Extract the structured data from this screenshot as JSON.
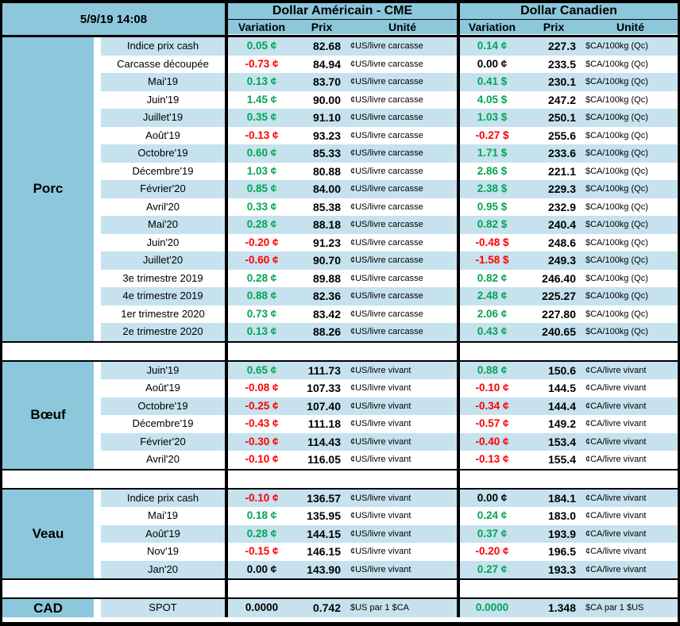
{
  "titlebar": {
    "timestamp": "5/9/19 14:08"
  },
  "header": {
    "us": {
      "title": "Dollar Américain - CME",
      "cols": [
        "Variation",
        "Prix",
        "Unité"
      ]
    },
    "ca": {
      "title": "Dollar Canadien",
      "cols": [
        "Variation",
        "Prix",
        "Unité"
      ]
    }
  },
  "colors": {
    "green": "#00A651",
    "red": "#FF0000",
    "black": "#000000",
    "header_blue": "#8CC7DB",
    "stripe_blue": "#C5E2EE"
  },
  "sections": [
    {
      "name": "Porc",
      "spot": false,
      "rows": [
        {
          "label": "Indice prix cash",
          "us_var": "0.05 ¢",
          "us_var_c": "g",
          "us_prix": "82.68",
          "us_unit": "¢US/livre carcasse",
          "ca_var": "0.14 ¢",
          "ca_var_c": "g",
          "ca_prix": "227.3",
          "ca_unit": "$CA/100kg (Qc)"
        },
        {
          "label": "Carcasse découpée",
          "us_var": "-0.73 ¢",
          "us_var_c": "r",
          "us_prix": "84.94",
          "us_unit": "¢US/livre carcasse",
          "ca_var": "0.00 ¢",
          "ca_var_c": "k",
          "ca_prix": "233.5",
          "ca_unit": "$CA/100kg (Qc)"
        },
        {
          "label": "Mai'19",
          "us_var": "0.13 ¢",
          "us_var_c": "g",
          "us_prix": "83.70",
          "us_unit": "¢US/livre carcasse",
          "ca_var": "0.41 $",
          "ca_var_c": "g",
          "ca_prix": "230.1",
          "ca_unit": "$CA/100kg (Qc)"
        },
        {
          "label": "Juin'19",
          "us_var": "1.45 ¢",
          "us_var_c": "g",
          "us_prix": "90.00",
          "us_unit": "¢US/livre carcasse",
          "ca_var": "4.05 $",
          "ca_var_c": "g",
          "ca_prix": "247.2",
          "ca_unit": "$CA/100kg (Qc)"
        },
        {
          "label": "Juillet'19",
          "us_var": "0.35 ¢",
          "us_var_c": "g",
          "us_prix": "91.10",
          "us_unit": "¢US/livre carcasse",
          "ca_var": "1.03 $",
          "ca_var_c": "g",
          "ca_prix": "250.1",
          "ca_unit": "$CA/100kg (Qc)"
        },
        {
          "label": "Août'19",
          "us_var": "-0.13 ¢",
          "us_var_c": "r",
          "us_prix": "93.23",
          "us_unit": "¢US/livre carcasse",
          "ca_var": "-0.27 $",
          "ca_var_c": "r",
          "ca_prix": "255.6",
          "ca_unit": "$CA/100kg (Qc)"
        },
        {
          "label": "Octobre'19",
          "us_var": "0.60 ¢",
          "us_var_c": "g",
          "us_prix": "85.33",
          "us_unit": "¢US/livre carcasse",
          "ca_var": "1.71 $",
          "ca_var_c": "g",
          "ca_prix": "233.6",
          "ca_unit": "$CA/100kg (Qc)"
        },
        {
          "label": "Décembre'19",
          "us_var": "1.03 ¢",
          "us_var_c": "g",
          "us_prix": "80.88",
          "us_unit": "¢US/livre carcasse",
          "ca_var": "2.86 $",
          "ca_var_c": "g",
          "ca_prix": "221.1",
          "ca_unit": "$CA/100kg (Qc)"
        },
        {
          "label": "Février'20",
          "us_var": "0.85 ¢",
          "us_var_c": "g",
          "us_prix": "84.00",
          "us_unit": "¢US/livre carcasse",
          "ca_var": "2.38 $",
          "ca_var_c": "g",
          "ca_prix": "229.3",
          "ca_unit": "$CA/100kg (Qc)"
        },
        {
          "label": "Avril'20",
          "us_var": "0.33 ¢",
          "us_var_c": "g",
          "us_prix": "85.38",
          "us_unit": "¢US/livre carcasse",
          "ca_var": "0.95 $",
          "ca_var_c": "g",
          "ca_prix": "232.9",
          "ca_unit": "$CA/100kg (Qc)"
        },
        {
          "label": "Mai'20",
          "us_var": "0.28 ¢",
          "us_var_c": "g",
          "us_prix": "88.18",
          "us_unit": "¢US/livre carcasse",
          "ca_var": "0.82 $",
          "ca_var_c": "g",
          "ca_prix": "240.4",
          "ca_unit": "$CA/100kg (Qc)"
        },
        {
          "label": "Juin'20",
          "us_var": "-0.20 ¢",
          "us_var_c": "r",
          "us_prix": "91.23",
          "us_unit": "¢US/livre carcasse",
          "ca_var": "-0.48 $",
          "ca_var_c": "r",
          "ca_prix": "248.6",
          "ca_unit": "$CA/100kg (Qc)"
        },
        {
          "label": "Juillet'20",
          "us_var": "-0.60 ¢",
          "us_var_c": "r",
          "us_prix": "90.70",
          "us_unit": "¢US/livre carcasse",
          "ca_var": "-1.58 $",
          "ca_var_c": "r",
          "ca_prix": "249.3",
          "ca_unit": "$CA/100kg (Qc)"
        },
        {
          "label": "3e trimestre 2019",
          "us_var": "0.28 ¢",
          "us_var_c": "g",
          "us_prix": "89.88",
          "us_unit": "¢US/livre carcasse",
          "ca_var": "0.82 ¢",
          "ca_var_c": "g",
          "ca_prix": "246.40",
          "ca_unit": "$CA/100kg (Qc)"
        },
        {
          "label": "4e trimestre 2019",
          "us_var": "0.88 ¢",
          "us_var_c": "g",
          "us_prix": "82.36",
          "us_unit": "¢US/livre carcasse",
          "ca_var": "2.48 ¢",
          "ca_var_c": "g",
          "ca_prix": "225.27",
          "ca_unit": "$CA/100kg (Qc)"
        },
        {
          "label": "1er trimestre 2020",
          "us_var": "0.73 ¢",
          "us_var_c": "g",
          "us_prix": "83.42",
          "us_unit": "¢US/livre carcasse",
          "ca_var": "2.06 ¢",
          "ca_var_c": "g",
          "ca_prix": "227.80",
          "ca_unit": "$CA/100kg (Qc)"
        },
        {
          "label": "2e trimestre 2020",
          "us_var": "0.13 ¢",
          "us_var_c": "g",
          "us_prix": "88.26",
          "us_unit": "¢US/livre carcasse",
          "ca_var": "0.43 ¢",
          "ca_var_c": "g",
          "ca_prix": "240.65",
          "ca_unit": "$CA/100kg (Qc)"
        }
      ]
    },
    {
      "name": "Bœuf",
      "spot": false,
      "rows": [
        {
          "label": "Juin'19",
          "us_var": "0.65 ¢",
          "us_var_c": "g",
          "us_prix": "111.73",
          "us_unit": "¢US/livre vivant",
          "ca_var": "0.88 ¢",
          "ca_var_c": "g",
          "ca_prix": "150.6",
          "ca_unit": "¢CA/livre vivant"
        },
        {
          "label": "Août'19",
          "us_var": "-0.08 ¢",
          "us_var_c": "r",
          "us_prix": "107.33",
          "us_unit": "¢US/livre vivant",
          "ca_var": "-0.10 ¢",
          "ca_var_c": "r",
          "ca_prix": "144.5",
          "ca_unit": "¢CA/livre vivant"
        },
        {
          "label": "Octobre'19",
          "us_var": "-0.25 ¢",
          "us_var_c": "r",
          "us_prix": "107.40",
          "us_unit": "¢US/livre vivant",
          "ca_var": "-0.34 ¢",
          "ca_var_c": "r",
          "ca_prix": "144.4",
          "ca_unit": "¢CA/livre vivant"
        },
        {
          "label": "Décembre'19",
          "us_var": "-0.43 ¢",
          "us_var_c": "r",
          "us_prix": "111.18",
          "us_unit": "¢US/livre vivant",
          "ca_var": "-0.57 ¢",
          "ca_var_c": "r",
          "ca_prix": "149.2",
          "ca_unit": "¢CA/livre vivant"
        },
        {
          "label": "Février'20",
          "us_var": "-0.30 ¢",
          "us_var_c": "r",
          "us_prix": "114.43",
          "us_unit": "¢US/livre vivant",
          "ca_var": "-0.40 ¢",
          "ca_var_c": "r",
          "ca_prix": "153.4",
          "ca_unit": "¢CA/livre vivant"
        },
        {
          "label": "Avril'20",
          "us_var": "-0.10 ¢",
          "us_var_c": "r",
          "us_prix": "116.05",
          "us_unit": "¢US/livre vivant",
          "ca_var": "-0.13 ¢",
          "ca_var_c": "r",
          "ca_prix": "155.4",
          "ca_unit": "¢CA/livre vivant"
        }
      ]
    },
    {
      "name": "Veau",
      "spot": false,
      "rows": [
        {
          "label": "Indice prix cash",
          "us_var": "-0.10 ¢",
          "us_var_c": "r",
          "us_prix": "136.57",
          "us_unit": "¢US/livre vivant",
          "ca_var": "0.00 ¢",
          "ca_var_c": "k",
          "ca_prix": "184.1",
          "ca_unit": "¢CA/livre vivant"
        },
        {
          "label": "Mai'19",
          "us_var": "0.18 ¢",
          "us_var_c": "g",
          "us_prix": "135.95",
          "us_unit": "¢US/livre vivant",
          "ca_var": "0.24 ¢",
          "ca_var_c": "g",
          "ca_prix": "183.0",
          "ca_unit": "¢CA/livre vivant"
        },
        {
          "label": "Août'19",
          "us_var": "0.28 ¢",
          "us_var_c": "g",
          "us_prix": "144.15",
          "us_unit": "¢US/livre vivant",
          "ca_var": "0.37 ¢",
          "ca_var_c": "g",
          "ca_prix": "193.9",
          "ca_unit": "¢CA/livre vivant"
        },
        {
          "label": "Nov'19",
          "us_var": "-0.15 ¢",
          "us_var_c": "r",
          "us_prix": "146.15",
          "us_unit": "¢US/livre vivant",
          "ca_var": "-0.20 ¢",
          "ca_var_c": "r",
          "ca_prix": "196.5",
          "ca_unit": "¢CA/livre vivant"
        },
        {
          "label": "Jan'20",
          "us_var": "0.00 ¢",
          "us_var_c": "k",
          "us_prix": "143.90",
          "us_unit": "¢US/livre vivant",
          "ca_var": "0.27 ¢",
          "ca_var_c": "g",
          "ca_prix": "193.3",
          "ca_unit": "¢CA/livre vivant"
        }
      ]
    },
    {
      "name": "CAD",
      "spot": true,
      "rows": [
        {
          "label": "SPOT",
          "us_var": "0.0000",
          "us_var_c": "k",
          "us_prix": "0.742",
          "us_unit": "$US par 1 $CA",
          "ca_var": "0.0000",
          "ca_var_c": "g",
          "ca_prix": "1.348",
          "ca_unit": "$CA par 1 $US"
        }
      ]
    }
  ]
}
